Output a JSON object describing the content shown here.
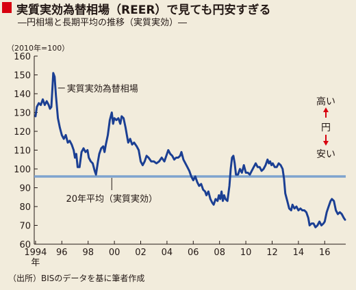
{
  "header": {
    "title": "実質実効為替相場（REER）で見ても円安すぎる",
    "subtitle": "―円相場と長期平均の推移（実質実効）―"
  },
  "unit_label": "（2010年=100）",
  "source": "（出所）BISのデータを基に筆者作成",
  "colors": {
    "series": "#1b3f93",
    "average": "#7ea3cf",
    "arrow": "#d7000f",
    "title_marker": "#d7000f",
    "background": "#f2ecdc"
  },
  "chart_data": {
    "type": "line",
    "ylim": [
      60,
      160
    ],
    "yticks": [
      60,
      70,
      80,
      90,
      100,
      110,
      120,
      130,
      140,
      150,
      160
    ],
    "xlim": [
      1993.9,
      2017.6
    ],
    "xticks": [
      {
        "x": 1994,
        "label": "1994"
      },
      {
        "x": 1996,
        "label": "96"
      },
      {
        "x": 1998,
        "label": "98"
      },
      {
        "x": 2000,
        "label": "00"
      },
      {
        "x": 2002,
        "label": "02"
      },
      {
        "x": 2004,
        "label": "04"
      },
      {
        "x": 2006,
        "label": "06"
      },
      {
        "x": 2008,
        "label": "08"
      },
      {
        "x": 2010,
        "label": "10"
      },
      {
        "x": 2012,
        "label": "12"
      },
      {
        "x": 2014,
        "label": "14"
      },
      {
        "x": 2016,
        "label": "16"
      }
    ],
    "x_year_suffix": "年",
    "grid": false,
    "series": [
      {
        "name": "実質実効為替相場",
        "points": [
          [
            1994.0,
            128
          ],
          [
            1994.1,
            133
          ],
          [
            1994.25,
            135
          ],
          [
            1994.4,
            134
          ],
          [
            1994.55,
            137
          ],
          [
            1994.7,
            134
          ],
          [
            1994.85,
            136
          ],
          [
            1995.0,
            134
          ],
          [
            1995.1,
            132
          ],
          [
            1995.2,
            133
          ],
          [
            1995.3,
            145
          ],
          [
            1995.35,
            151
          ],
          [
            1995.45,
            149
          ],
          [
            1995.55,
            139
          ],
          [
            1995.7,
            127
          ],
          [
            1995.85,
            122
          ],
          [
            1996.0,
            118
          ],
          [
            1996.15,
            116
          ],
          [
            1996.3,
            118
          ],
          [
            1996.45,
            114
          ],
          [
            1996.6,
            115
          ],
          [
            1996.75,
            113
          ],
          [
            1996.9,
            110
          ],
          [
            1997.0,
            106
          ],
          [
            1997.1,
            108
          ],
          [
            1997.2,
            101
          ],
          [
            1997.35,
            101
          ],
          [
            1997.5,
            109
          ],
          [
            1997.65,
            111
          ],
          [
            1997.8,
            109
          ],
          [
            1997.95,
            110
          ],
          [
            1998.05,
            106
          ],
          [
            1998.2,
            104
          ],
          [
            1998.35,
            103
          ],
          [
            1998.5,
            99
          ],
          [
            1998.6,
            97
          ],
          [
            1998.75,
            104
          ],
          [
            1998.85,
            108
          ],
          [
            1999.0,
            111
          ],
          [
            1999.15,
            112
          ],
          [
            1999.25,
            109
          ],
          [
            1999.35,
            113
          ],
          [
            1999.5,
            118
          ],
          [
            1999.65,
            126
          ],
          [
            1999.8,
            130
          ],
          [
            1999.9,
            124
          ],
          [
            2000.0,
            127
          ],
          [
            2000.15,
            126
          ],
          [
            2000.3,
            127
          ],
          [
            2000.45,
            124
          ],
          [
            2000.55,
            128
          ],
          [
            2000.7,
            127
          ],
          [
            2000.85,
            122
          ],
          [
            2000.95,
            118
          ],
          [
            2001.05,
            114
          ],
          [
            2001.2,
            116
          ],
          [
            2001.35,
            113
          ],
          [
            2001.5,
            114
          ],
          [
            2001.7,
            112
          ],
          [
            2001.85,
            110
          ],
          [
            2002.0,
            104
          ],
          [
            2002.15,
            102
          ],
          [
            2002.3,
            104
          ],
          [
            2002.45,
            107
          ],
          [
            2002.6,
            106
          ],
          [
            2002.8,
            104
          ],
          [
            2003.0,
            104
          ],
          [
            2003.2,
            103
          ],
          [
            2003.4,
            104
          ],
          [
            2003.6,
            106
          ],
          [
            2003.8,
            104
          ],
          [
            2004.0,
            108
          ],
          [
            2004.1,
            110
          ],
          [
            2004.25,
            108
          ],
          [
            2004.4,
            107
          ],
          [
            2004.55,
            105
          ],
          [
            2004.7,
            106
          ],
          [
            2004.85,
            106
          ],
          [
            2005.0,
            107
          ],
          [
            2005.1,
            109
          ],
          [
            2005.25,
            105
          ],
          [
            2005.4,
            103
          ],
          [
            2005.55,
            101
          ],
          [
            2005.7,
            99
          ],
          [
            2005.85,
            96
          ],
          [
            2006.0,
            94
          ],
          [
            2006.15,
            96
          ],
          [
            2006.3,
            93
          ],
          [
            2006.45,
            91
          ],
          [
            2006.6,
            92
          ],
          [
            2006.75,
            89
          ],
          [
            2006.9,
            88
          ],
          [
            2007.0,
            86
          ],
          [
            2007.15,
            88
          ],
          [
            2007.3,
            84
          ],
          [
            2007.45,
            82
          ],
          [
            2007.55,
            81
          ],
          [
            2007.7,
            84
          ],
          [
            2007.85,
            83
          ],
          [
            2007.95,
            86
          ],
          [
            2008.05,
            84
          ],
          [
            2008.15,
            88
          ],
          [
            2008.25,
            83
          ],
          [
            2008.35,
            86
          ],
          [
            2008.45,
            84
          ],
          [
            2008.6,
            83
          ],
          [
            2008.75,
            91
          ],
          [
            2008.85,
            100
          ],
          [
            2008.95,
            106
          ],
          [
            2009.05,
            107
          ],
          [
            2009.15,
            103
          ],
          [
            2009.25,
            97
          ],
          [
            2009.4,
            97
          ],
          [
            2009.55,
            100
          ],
          [
            2009.7,
            98
          ],
          [
            2009.85,
            102
          ],
          [
            2010.0,
            98
          ],
          [
            2010.15,
            98
          ],
          [
            2010.3,
            97
          ],
          [
            2010.45,
            99
          ],
          [
            2010.6,
            101
          ],
          [
            2010.75,
            103
          ],
          [
            2010.9,
            101
          ],
          [
            2011.05,
            101
          ],
          [
            2011.2,
            99
          ],
          [
            2011.35,
            100
          ],
          [
            2011.5,
            102
          ],
          [
            2011.65,
            105
          ],
          [
            2011.75,
            103
          ],
          [
            2011.85,
            104
          ],
          [
            2011.95,
            102
          ],
          [
            2012.05,
            103
          ],
          [
            2012.2,
            101
          ],
          [
            2012.35,
            101
          ],
          [
            2012.5,
            103
          ],
          [
            2012.65,
            102
          ],
          [
            2012.8,
            100
          ],
          [
            2012.9,
            95
          ],
          [
            2013.0,
            87
          ],
          [
            2013.15,
            83
          ],
          [
            2013.3,
            79
          ],
          [
            2013.45,
            78
          ],
          [
            2013.55,
            81
          ],
          [
            2013.7,
            79
          ],
          [
            2013.85,
            80
          ],
          [
            2014.0,
            78
          ],
          [
            2014.15,
            79
          ],
          [
            2014.3,
            78
          ],
          [
            2014.45,
            78
          ],
          [
            2014.6,
            77
          ],
          [
            2014.75,
            74
          ],
          [
            2014.85,
            70
          ],
          [
            2015.0,
            71
          ],
          [
            2015.15,
            71
          ],
          [
            2015.3,
            69
          ],
          [
            2015.45,
            70
          ],
          [
            2015.6,
            72
          ],
          [
            2015.75,
            70
          ],
          [
            2015.9,
            71
          ],
          [
            2016.0,
            72
          ],
          [
            2016.15,
            77
          ],
          [
            2016.3,
            80
          ],
          [
            2016.45,
            83
          ],
          [
            2016.55,
            84
          ],
          [
            2016.7,
            83
          ],
          [
            2016.85,
            78
          ],
          [
            2017.0,
            76
          ],
          [
            2017.15,
            77
          ],
          [
            2017.3,
            76
          ],
          [
            2017.45,
            74
          ],
          [
            2017.55,
            73
          ]
        ]
      },
      {
        "name": "20年平均（実質実効）",
        "points": [
          [
            1993.9,
            96
          ],
          [
            2017.6,
            96
          ]
        ]
      }
    ],
    "annotations": [
      {
        "id": "series-label",
        "text": "実質実効為替相場",
        "x": 1995.45,
        "y": 143
      },
      {
        "id": "average-label",
        "text": "20年平均（実質実効）",
        "x": 1999.8,
        "y": 96
      },
      {
        "id": "legend-high",
        "text": "高い"
      },
      {
        "id": "legend-yen",
        "text": "円"
      },
      {
        "id": "legend-low",
        "text": "安い"
      }
    ]
  }
}
